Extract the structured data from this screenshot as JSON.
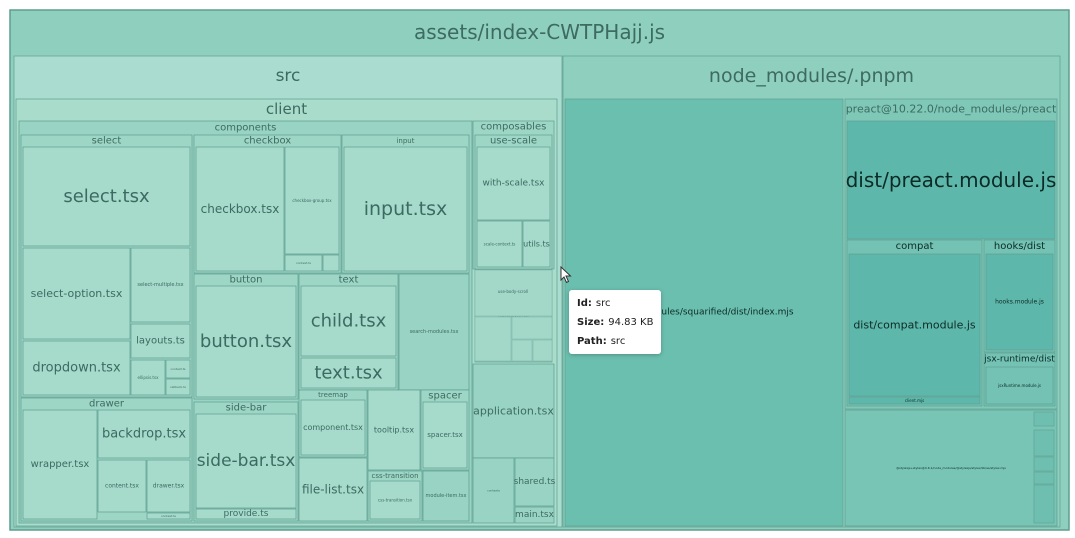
{
  "chart_data": {
    "type": "treemap",
    "root": {
      "name": "assets/index-CWTPHajj.js",
      "children": [
        {
          "name": "src",
          "children": [
            {
              "name": "client",
              "children": [
                {
                  "name": "components",
                  "children": [
                    {
                      "name": "select",
                      "children": [
                        {
                          "name": "select.tsx"
                        },
                        {
                          "name": "select-option.tsx"
                        },
                        {
                          "name": "select-multiple.tsx"
                        },
                        {
                          "name": "dropdown.tsx"
                        },
                        {
                          "name": "layouts.ts"
                        },
                        {
                          "name": "ellipsis.tsx"
                        },
                        {
                          "name": "context.ts"
                        },
                        {
                          "name": "callback.ts"
                        }
                      ]
                    },
                    {
                      "name": "checkbox",
                      "children": [
                        {
                          "name": "checkbox.tsx"
                        },
                        {
                          "name": "checkbox-group.tsx"
                        },
                        {
                          "name": "context.ts"
                        },
                        {
                          "name": ""
                        }
                      ]
                    },
                    {
                      "name": "input",
                      "children": [
                        {
                          "name": "input.tsx"
                        }
                      ]
                    },
                    {
                      "name": "button",
                      "children": [
                        {
                          "name": "button.tsx"
                        }
                      ]
                    },
                    {
                      "name": "text",
                      "children": [
                        {
                          "name": "child.tsx"
                        },
                        {
                          "name": "text.tsx"
                        }
                      ]
                    },
                    {
                      "name": "search-modules.tsx"
                    },
                    {
                      "name": "drawer",
                      "children": [
                        {
                          "name": "backdrop.tsx"
                        },
                        {
                          "name": "wrapper.tsx"
                        },
                        {
                          "name": "content.tsx"
                        },
                        {
                          "name": "drawer.tsx"
                        },
                        {
                          "name": "context.ts"
                        }
                      ]
                    },
                    {
                      "name": "side-bar",
                      "children": [
                        {
                          "name": "side-bar.tsx"
                        },
                        {
                          "name": "provide.ts"
                        }
                      ]
                    },
                    {
                      "name": "treemap",
                      "children": [
                        {
                          "name": "component.tsx"
                        },
                        {
                          "name": "file-list.tsx"
                        }
                      ]
                    },
                    {
                      "name": "tooltip.tsx"
                    },
                    {
                      "name": "spacer",
                      "children": [
                        {
                          "name": "spacer.tsx"
                        }
                      ]
                    },
                    {
                      "name": "css-transition",
                      "children": [
                        {
                          "name": "css-transition.tsx"
                        }
                      ]
                    },
                    {
                      "name": "module-item.tsx"
                    }
                  ]
                },
                {
                  "name": "composables",
                  "children": [
                    {
                      "name": "use-scale",
                      "children": [
                        {
                          "name": "with-scale.tsx"
                        },
                        {
                          "name": "scale-context.ts"
                        },
                        {
                          "name": "utils.ts"
                        }
                      ]
                    },
                    {
                      "name": "use-body-scroll"
                    }
                  ]
                },
                {
                  "name": "application.tsx"
                },
                {
                  "name": "shared.ts"
                },
                {
                  "name": "main.tsx"
                },
                {
                  "name": "contexts"
                }
              ]
            }
          ]
        },
        {
          "name": "node_modules/.pnpm",
          "children": [
            {
              "name": "node_modules/squarified/dist/index.mjs"
            },
            {
              "name": "preact@10.22.0/node_modules/preact",
              "children": [
                {
                  "name": "dist/preact.module.js"
                },
                {
                  "name": "compat",
                  "children": [
                    {
                      "name": "dist/compat.module.js"
                    },
                    {
                      "name": "client.mjs"
                    }
                  ]
                },
                {
                  "name": "hooks/dist",
                  "children": [
                    {
                      "name": "hooks.module.js"
                    }
                  ]
                },
                {
                  "name": "jsx-runtime/dist",
                  "children": [
                    {
                      "name": "jsxRuntime.module.js"
                    }
                  ]
                }
              ]
            },
            {
              "name": "@stylexjs+stylex@0.6.1/node_modules/@stylexjs/stylex/lib/es/stylex.mjs"
            }
          ]
        }
      ]
    }
  },
  "tooltip": {
    "id_label": "Id:",
    "id_value": "src",
    "size_label": "Size:",
    "size_value": "94.83 KB",
    "path_label": "Path:",
    "path_value": "src"
  }
}
